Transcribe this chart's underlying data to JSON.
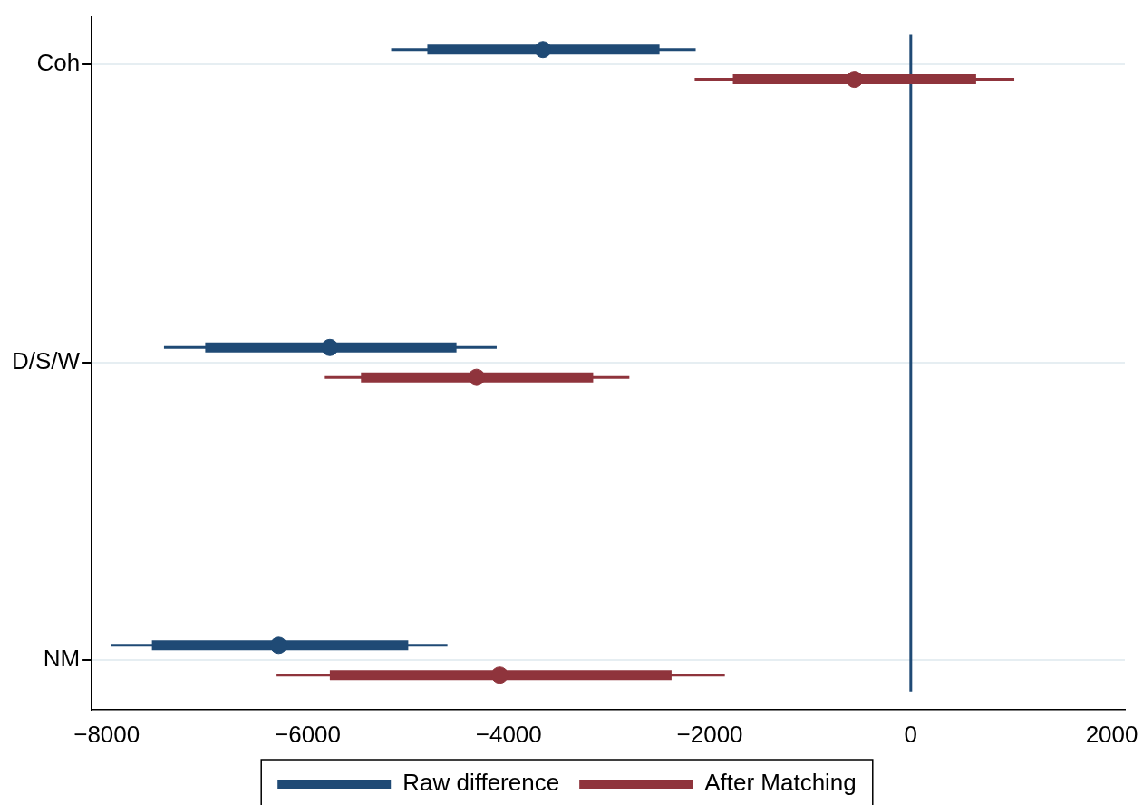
{
  "chart_data": {
    "type": "scatter",
    "orientation": "horizontal",
    "categories": [
      "Coh",
      "D/S/W",
      "NM"
    ],
    "xlim": [
      -8150,
      2130
    ],
    "xticks": [
      -8000,
      -6000,
      -4000,
      -2000,
      0,
      2000
    ],
    "series": [
      {
        "name": "Raw difference",
        "color": "#1f4a75",
        "values": [
          -3660,
          -5780,
          -6290
        ],
        "errors": [
          [
            -5170,
            -2140
          ],
          [
            -7430,
            -4120
          ],
          [
            -7960,
            -4610
          ]
        ]
      },
      {
        "type": "bar",
        "color": "#1f4a75",
        "base": [
          -4810,
          -7020,
          -7550
        ],
        "values": [
          2310,
          2500,
          2550
        ]
      },
      {
        "name": "After Matching",
        "color": "#8f343c",
        "values": [
          -560,
          -4320,
          -4090
        ],
        "errors": [
          [
            -2150,
            1030
          ],
          [
            -5830,
            -2800
          ],
          [
            -6310,
            -1850
          ]
        ]
      },
      {
        "type": "bar",
        "color": "#8f343c",
        "base": [
          -1770,
          -5470,
          -5780
        ],
        "values": [
          2420,
          2310,
          3400
        ]
      }
    ],
    "ref_lines": [
      {
        "axis": "x",
        "value": 0,
        "color": "#1f4a75"
      }
    ],
    "grid": "y",
    "legend": "bottom",
    "marker": "circle"
  }
}
